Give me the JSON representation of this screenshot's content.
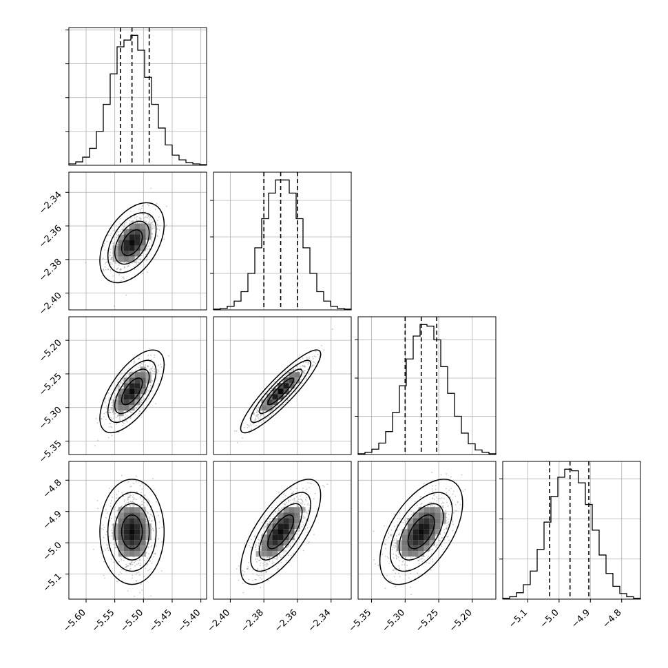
{
  "chart_data": {
    "type": "corner",
    "parameters": [
      {
        "range": [
          -5.63,
          -5.39
        ],
        "ticks": [
          "−5.60",
          "−5.55",
          "−5.50",
          "−5.45",
          "−5.40"
        ],
        "tick_values": [
          -5.6,
          -5.55,
          -5.5,
          -5.45,
          -5.4
        ],
        "mean": -5.52,
        "std": 0.02,
        "quantiles": [
          -5.54,
          -5.52,
          -5.49
        ]
      },
      {
        "range": [
          -2.41,
          -2.328
        ],
        "ticks": [
          "−2.40",
          "−2.38",
          "−2.36",
          "−2.34"
        ],
        "tick_values": [
          -2.4,
          -2.38,
          -2.36,
          -2.34
        ],
        "mean": -2.37,
        "std": 0.0085,
        "quantiles": [
          -2.38,
          -2.37,
          -2.36
        ]
      },
      {
        "range": [
          -5.37,
          -5.165
        ],
        "ticks": [
          "−5.35",
          "−5.30",
          "−5.25",
          "−5.20"
        ],
        "tick_values": [
          -5.35,
          -5.3,
          -5.25,
          -5.2
        ],
        "mean": -5.276,
        "std": 0.022,
        "quantiles": [
          -5.3,
          -5.276,
          -5.253
        ]
      },
      {
        "range": [
          -5.18,
          -4.74
        ],
        "ticks": [
          "−5.1",
          "−5.0",
          "−4.9",
          "−4.8"
        ],
        "tick_values": [
          -5.1,
          -5.0,
          -4.9,
          -4.8
        ],
        "mean": -4.965,
        "std": 0.06,
        "quantiles": [
          -5.03,
          -4.965,
          -4.905
        ]
      }
    ],
    "correlations": [
      [
        1.0,
        0.45,
        0.65,
        0.0
      ],
      [
        0.45,
        1.0,
        0.9,
        0.7
      ],
      [
        0.65,
        0.9,
        1.0,
        0.55
      ],
      [
        0.0,
        0.7,
        0.55,
        1.0
      ]
    ],
    "histograms": [
      [
        2,
        5,
        12,
        25,
        50,
        90,
        135,
        175,
        185,
        192,
        170,
        130,
        90,
        55,
        30,
        15,
        8,
        4,
        2,
        1
      ],
      [
        1,
        2,
        5,
        12,
        25,
        50,
        85,
        125,
        160,
        178,
        178,
        160,
        125,
        85,
        50,
        25,
        12,
        5,
        2,
        1
      ],
      [
        1,
        3,
        7,
        15,
        30,
        55,
        90,
        125,
        155,
        170,
        168,
        150,
        115,
        80,
        50,
        28,
        14,
        6,
        3,
        1
      ],
      [
        1,
        3,
        8,
        18,
        35,
        62,
        96,
        128,
        152,
        162,
        160,
        145,
        118,
        86,
        55,
        32,
        16,
        7,
        3,
        1
      ]
    ],
    "hist_ytick_values": [
      [
        200,
        150,
        100,
        50
      ],
      [
        150,
        100,
        50
      ],
      [
        150,
        100,
        50
      ],
      [
        150,
        100,
        50
      ]
    ],
    "grid": true,
    "colors": {
      "line": "#000000",
      "points": "#8c8c8c",
      "grid": "#b0b0b0",
      "density_dark": "#000000",
      "density_light": "#f0f0f0"
    }
  }
}
